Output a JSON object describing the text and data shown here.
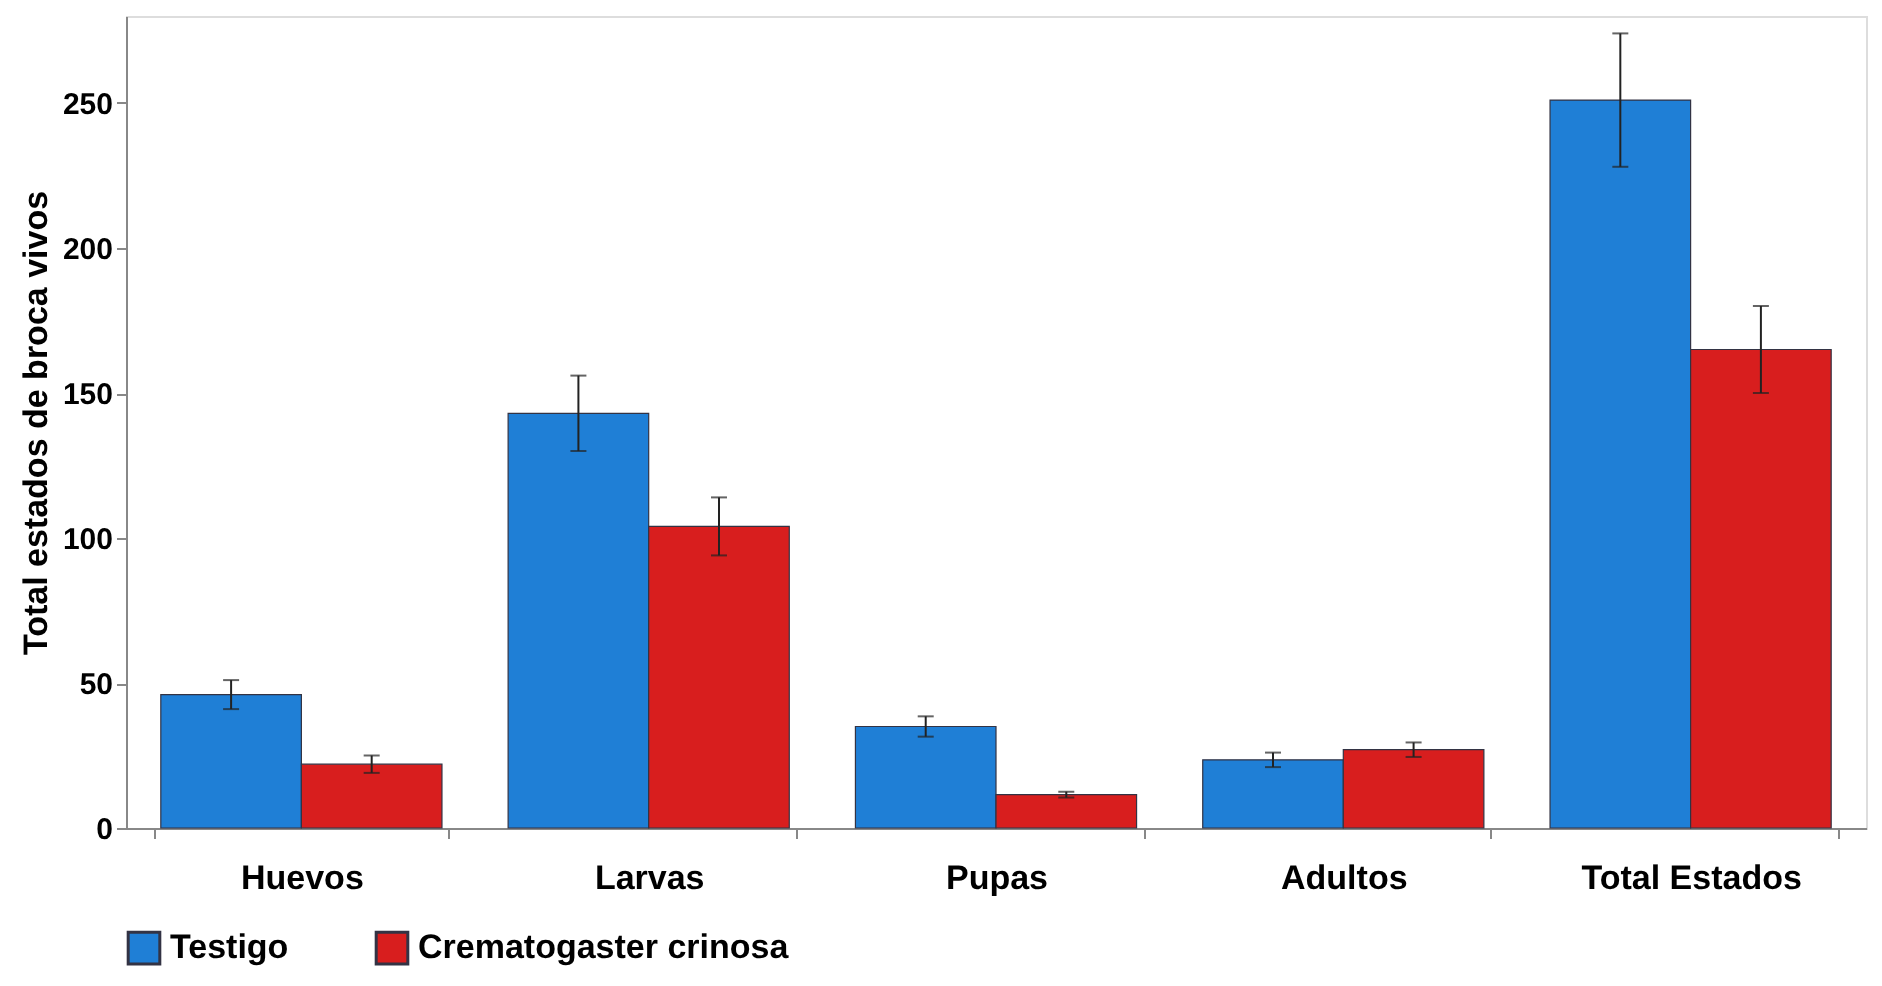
{
  "chart_data": {
    "type": "bar",
    "ylabel": "Total estados de broca vivos",
    "categories": [
      "Huevos",
      "Larvas",
      "Pupas",
      "Adultos",
      "Total Estados"
    ],
    "series": [
      {
        "name": "Testigo",
        "color": "#1f7fd6",
        "values": [
          46,
          143,
          35,
          23.5,
          251
        ],
        "errors": [
          5,
          13,
          3.5,
          2.5,
          23
        ]
      },
      {
        "name": "Crematogaster crinosa",
        "color": "#d81e1e",
        "values": [
          22,
          104,
          11.5,
          27,
          165
        ],
        "errors": [
          3,
          10,
          1,
          2.5,
          15
        ]
      }
    ],
    "ylim": [
      0,
      280
    ],
    "yticks": [
      0,
      50,
      100,
      150,
      200,
      250
    ],
    "grid": false,
    "legend": "bottom"
  }
}
